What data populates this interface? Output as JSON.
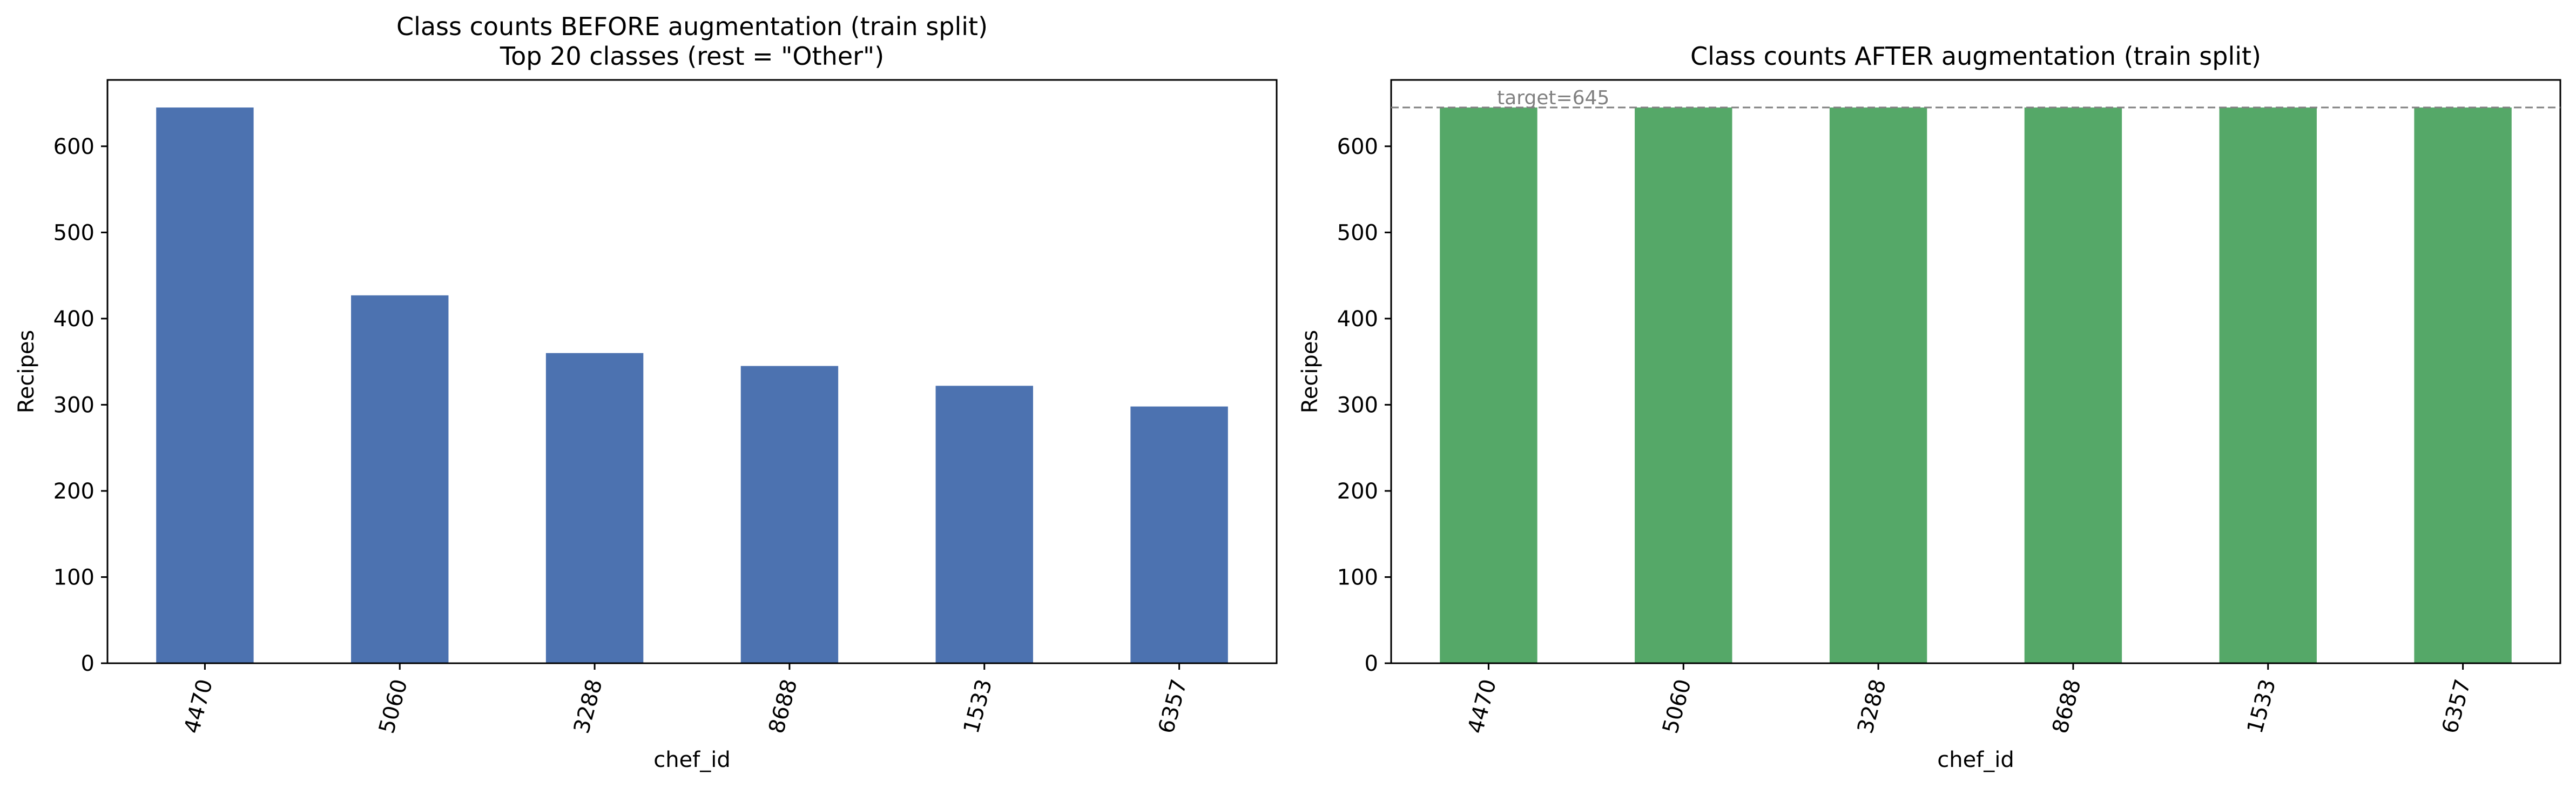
{
  "chart_data": [
    {
      "type": "bar",
      "title_lines": [
        "Class counts BEFORE augmentation (train split)",
        "Top 20 classes (rest = \"Other\")"
      ],
      "xlabel": "chef_id",
      "ylabel": "Recipes",
      "categories": [
        "4470",
        "5060",
        "3288",
        "8688",
        "1533",
        "6357"
      ],
      "values": [
        645,
        427,
        360,
        345,
        322,
        298
      ],
      "ylim": [
        0,
        677
      ],
      "yticks": [
        0,
        100,
        200,
        300,
        400,
        500,
        600
      ],
      "color": "#4c72b0",
      "grid": false,
      "legend": "none"
    },
    {
      "type": "bar",
      "title_lines": [
        "Class counts AFTER augmentation (train split)"
      ],
      "xlabel": "chef_id",
      "ylabel": "Recipes",
      "categories": [
        "4470",
        "5060",
        "3288",
        "8688",
        "1533",
        "6357"
      ],
      "values": [
        645,
        645,
        645,
        645,
        645,
        645
      ],
      "ylim": [
        0,
        677
      ],
      "yticks": [
        0,
        100,
        200,
        300,
        400,
        500,
        600
      ],
      "color": "#55a868",
      "grid": false,
      "legend": "none",
      "reference_line": {
        "value": 645,
        "label": "target=645",
        "color": "#808080",
        "style": "dashed"
      }
    }
  ]
}
